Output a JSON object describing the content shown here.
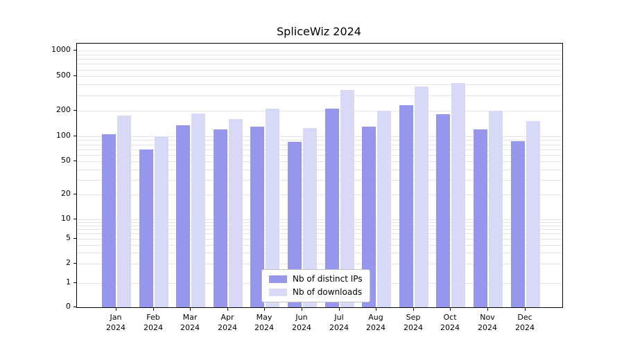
{
  "chart_data": {
    "type": "bar",
    "title": "SpliceWiz 2024",
    "categories": [
      "Jan 2024",
      "Feb 2024",
      "Mar 2024",
      "Apr 2024",
      "May 2024",
      "Jun 2024",
      "Jul 2024",
      "Aug 2024",
      "Sep 2024",
      "Oct 2024",
      "Nov 2024",
      "Dec 2024"
    ],
    "series": [
      {
        "name": "Nb of distinct IPs",
        "color": "#9696ec",
        "values": [
          105,
          70,
          135,
          120,
          130,
          85,
          210,
          130,
          230,
          180,
          120,
          88
        ]
      },
      {
        "name": "Nb of downloads",
        "color": "#d8d8f7",
        "values": [
          175,
          100,
          185,
          160,
          210,
          125,
          350,
          200,
          380,
          420,
          200,
          150
        ]
      }
    ],
    "yscale": "symlog",
    "yticks": [
      0,
      1,
      2,
      5,
      10,
      20,
      50,
      100,
      200,
      500,
      1000
    ],
    "ylim": [
      0,
      1000
    ],
    "grid": true,
    "legend_position": "lower center"
  }
}
